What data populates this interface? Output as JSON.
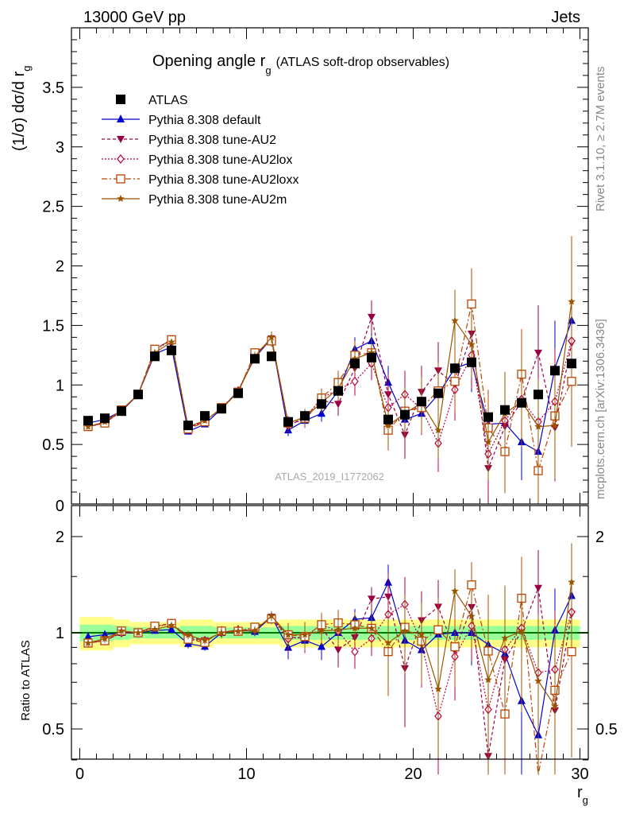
{
  "header": {
    "left": "13000 GeV pp",
    "right": "Jets"
  },
  "side_labels": {
    "rivet": "Rivet 3.1.10, ≥ 2.7M events",
    "mcplots": "mcplots.cern.ch [arXiv:1306.3436]"
  },
  "colors": {
    "atlas": "#000000",
    "default": "#0000cc",
    "au2": "#990044",
    "au2lox": "#bb0044",
    "au2loxx": "#bb4400",
    "au2m": "#995500",
    "band_inner": "#99ff99",
    "band_outer": "#ffff88",
    "ref_line": "#007700"
  },
  "chart_data": {
    "type": "line",
    "title": "Opening angle r",
    "title_sub": "g",
    "title_suffix": "(ATLAS soft-drop observables)",
    "watermark": "ATLAS_2019_I1772062",
    "xlabel": "r",
    "xlabel_sub": "g",
    "ylabel_main": "(1/σ) dσ/d r",
    "ylabel_main_sub": "g",
    "ylabel_ratio": "Ratio to ATLAS",
    "xlim": [
      -0.5,
      30.5
    ],
    "ylim_main": [
      0,
      4.0
    ],
    "ylim_ratio": [
      0.35,
      2.35
    ],
    "x_ticks": [
      0,
      10,
      20,
      30
    ],
    "y_ticks_main": [
      0.5,
      1,
      1.5,
      2,
      2.5,
      3,
      3.5
    ],
    "y_ticks_main_labels": [
      "0.5",
      "1",
      "1.5",
      "2",
      "2.5",
      "3",
      "3.5"
    ],
    "y_zero_label": "0",
    "y_ticks_ratio": [
      0.5,
      1,
      2
    ],
    "y_ticks_ratio_labels": [
      "0.5",
      "1",
      "2"
    ],
    "y_ticks_ratio_right_labels": [
      "0.5",
      "2"
    ],
    "x": [
      0.5,
      1.5,
      2.5,
      3.5,
      4.5,
      5.5,
      6.5,
      7.5,
      8.5,
      9.5,
      10.5,
      11.5,
      12.5,
      13.5,
      14.5,
      15.5,
      16.5,
      17.5,
      18.5,
      19.5,
      20.5,
      21.5,
      22.5,
      23.5,
      24.5,
      25.5,
      26.5,
      27.5,
      28.5,
      29.5
    ],
    "ref_band": [
      0.06,
      0.06,
      0.05,
      0.04,
      0.04,
      0.04,
      0.05,
      0.05,
      0.04,
      0.04,
      0.04,
      0.04,
      0.05,
      0.05,
      0.05,
      0.05,
      0.05,
      0.05,
      0.05,
      0.05,
      0.05,
      0.05,
      0.05,
      0.05,
      0.05,
      0.05,
      0.05,
      0.05,
      0.05,
      0.05
    ],
    "legend": [
      {
        "name": "ATLAS",
        "key": "atlas",
        "marker": "square",
        "dash": ""
      },
      {
        "name": "Pythia 8.308 default",
        "key": "default",
        "marker": "triangle-up",
        "dash": ""
      },
      {
        "name": "Pythia 8.308 tune-AU2",
        "key": "au2",
        "marker": "triangle-down",
        "dash": "4,3"
      },
      {
        "name": "Pythia 8.308 tune-AU2lox",
        "key": "au2lox",
        "marker": "diamond",
        "dash": "2,2"
      },
      {
        "name": "Pythia 8.308 tune-AU2loxx",
        "key": "au2loxx",
        "marker": "open-square",
        "dash": "7,3,2,3"
      },
      {
        "name": "Pythia 8.308 tune-AU2m",
        "key": "au2m",
        "marker": "star",
        "dash": ""
      }
    ],
    "series": [
      {
        "name": "ATLAS",
        "key": "atlas",
        "values": [
          0.7,
          0.72,
          0.78,
          0.92,
          1.24,
          1.29,
          0.66,
          0.74,
          0.8,
          0.93,
          1.22,
          1.24,
          0.69,
          0.74,
          0.84,
          0.95,
          1.18,
          1.23,
          0.71,
          0.75,
          0.86,
          0.93,
          1.14,
          1.19,
          0.73,
          0.79,
          0.85,
          0.92,
          1.12,
          1.18
        ],
        "errors": [
          0.01,
          0.01,
          0.01,
          0.01,
          0.01,
          0.01,
          0.01,
          0.01,
          0.01,
          0.01,
          0.01,
          0.01,
          0.01,
          0.01,
          0.01,
          0.01,
          0.01,
          0.01,
          0.01,
          0.01,
          0.01,
          0.01,
          0.01,
          0.01,
          0.01,
          0.01,
          0.01,
          0.01,
          0.01,
          0.01
        ]
      },
      {
        "name": "Pythia 8.308 default",
        "key": "default",
        "values": [
          0.68,
          0.71,
          0.78,
          0.92,
          1.26,
          1.32,
          0.61,
          0.67,
          0.8,
          0.95,
          1.23,
          1.39,
          0.62,
          0.7,
          0.76,
          0.95,
          1.3,
          1.37,
          1.02,
          0.71,
          0.76,
          0.92,
          1.14,
          1.19,
          0.67,
          0.68,
          0.52,
          0.44,
          1.14,
          1.54
        ],
        "errors": [
          0.02,
          0.02,
          0.02,
          0.02,
          0.02,
          0.02,
          0.02,
          0.02,
          0.03,
          0.03,
          0.04,
          0.05,
          0.05,
          0.06,
          0.07,
          0.08,
          0.1,
          0.12,
          0.14,
          0.16,
          0.18,
          0.2,
          0.22,
          0.25,
          0.27,
          0.3,
          0.32,
          0.35,
          0.4,
          0.5
        ]
      },
      {
        "name": "Pythia 8.308 tune-AU2",
        "key": "au2",
        "values": [
          0.65,
          0.68,
          0.78,
          0.92,
          1.3,
          1.38,
          0.64,
          0.7,
          0.8,
          0.94,
          1.25,
          1.39,
          0.67,
          0.71,
          0.87,
          0.84,
          1.14,
          1.57,
          0.92,
          0.58,
          0.94,
          1.12,
          1.0,
          1.43,
          0.3,
          0.65,
          0.86,
          1.27,
          0.64,
          1.35
        ],
        "errors": [
          0.02,
          0.02,
          0.02,
          0.02,
          0.02,
          0.02,
          0.02,
          0.02,
          0.03,
          0.03,
          0.04,
          0.05,
          0.06,
          0.07,
          0.08,
          0.1,
          0.12,
          0.14,
          0.17,
          0.2,
          0.22,
          0.24,
          0.26,
          0.28,
          0.32,
          0.35,
          0.38,
          0.4,
          0.45,
          0.55
        ]
      },
      {
        "name": "Pythia 8.308 tune-AU2lox",
        "key": "au2lox",
        "values": [
          0.65,
          0.68,
          0.78,
          0.92,
          1.29,
          1.38,
          0.63,
          0.7,
          0.8,
          0.95,
          1.25,
          1.38,
          0.66,
          0.72,
          0.89,
          0.96,
          1.03,
          1.18,
          0.81,
          0.92,
          0.8,
          0.51,
          0.96,
          1.25,
          0.42,
          0.7,
          0.88,
          0.69,
          0.86,
          1.37
        ],
        "errors": [
          0.02,
          0.02,
          0.02,
          0.02,
          0.02,
          0.02,
          0.02,
          0.02,
          0.03,
          0.03,
          0.04,
          0.05,
          0.06,
          0.07,
          0.08,
          0.1,
          0.12,
          0.14,
          0.17,
          0.2,
          0.22,
          0.24,
          0.26,
          0.28,
          0.32,
          0.35,
          0.38,
          0.4,
          0.45,
          0.55
        ]
      },
      {
        "name": "Pythia 8.308 tune-AU2loxx",
        "key": "au2loxx",
        "values": [
          0.65,
          0.68,
          0.79,
          0.92,
          1.3,
          1.38,
          0.63,
          0.69,
          0.81,
          0.94,
          1.27,
          1.37,
          0.68,
          0.72,
          0.89,
          1.02,
          1.25,
          1.27,
          0.62,
          0.78,
          0.81,
          0.95,
          1.03,
          1.68,
          0.64,
          0.44,
          1.09,
          0.28,
          0.74,
          1.03
        ],
        "errors": [
          0.02,
          0.02,
          0.02,
          0.02,
          0.02,
          0.02,
          0.02,
          0.02,
          0.03,
          0.03,
          0.04,
          0.05,
          0.06,
          0.07,
          0.08,
          0.1,
          0.12,
          0.14,
          0.17,
          0.2,
          0.22,
          0.24,
          0.26,
          0.3,
          0.32,
          0.35,
          0.38,
          0.4,
          0.45,
          0.55
        ]
      },
      {
        "name": "Pythia 8.308 tune-AU2m",
        "key": "au2m",
        "values": [
          0.65,
          0.69,
          0.79,
          0.92,
          1.27,
          1.36,
          0.65,
          0.7,
          0.8,
          0.94,
          1.24,
          1.4,
          0.68,
          0.73,
          0.85,
          0.97,
          1.22,
          1.27,
          0.66,
          0.76,
          0.85,
          0.62,
          1.54,
          1.34,
          0.52,
          0.76,
          0.86,
          0.65,
          0.66,
          1.7
        ],
        "errors": [
          0.02,
          0.02,
          0.02,
          0.02,
          0.02,
          0.02,
          0.02,
          0.02,
          0.03,
          0.03,
          0.04,
          0.05,
          0.06,
          0.07,
          0.08,
          0.1,
          0.12,
          0.14,
          0.17,
          0.2,
          0.22,
          0.24,
          0.26,
          0.28,
          0.32,
          0.35,
          0.38,
          0.4,
          0.45,
          0.55
        ]
      }
    ]
  }
}
